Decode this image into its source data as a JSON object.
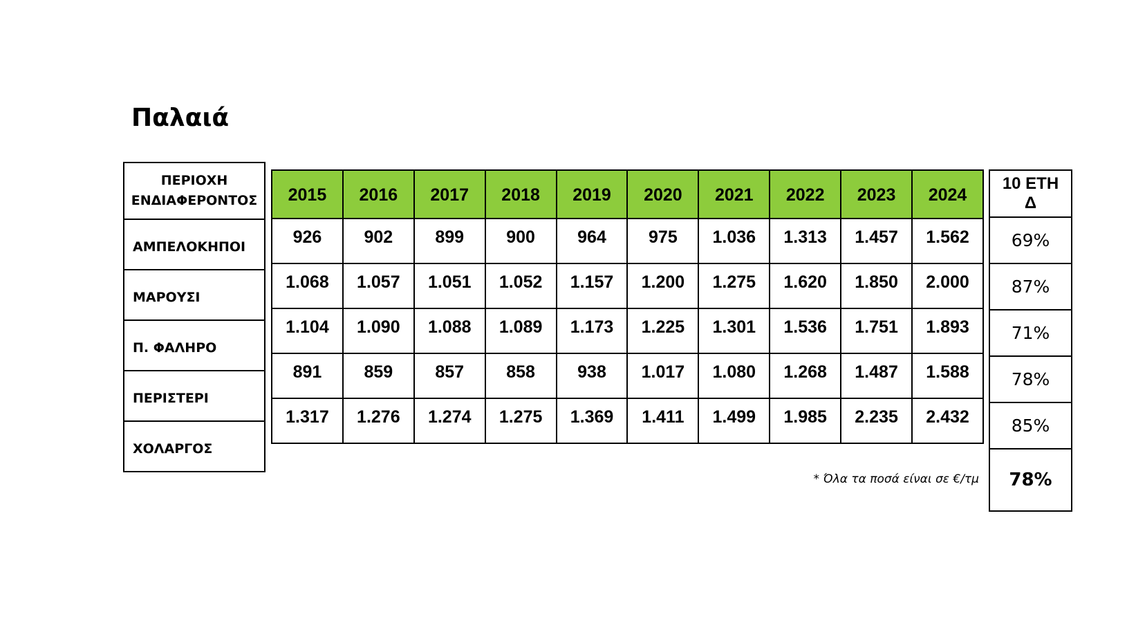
{
  "title": "Παλαιά",
  "region_header": [
    "ΠΕΡΙΟΧΗ",
    "ΕΝΔΙΑΦΕΡΟΝΤΟΣ"
  ],
  "years": [
    "2015",
    "2016",
    "2017",
    "2018",
    "2019",
    "2020",
    "2021",
    "2022",
    "2023",
    "2024"
  ],
  "change_header": [
    "10 ΕΤΗ",
    "Δ"
  ],
  "rows": [
    {
      "region": "ΑΜΠΕΛΟΚΗΠΟΙ",
      "values": [
        "926",
        "902",
        "899",
        "900",
        "964",
        "975",
        "1.036",
        "1.313",
        "1.457",
        "1.562"
      ],
      "change": "69%"
    },
    {
      "region": "ΜΑΡΟΥΣΙ",
      "values": [
        "1.068",
        "1.057",
        "1.051",
        "1.052",
        "1.157",
        "1.200",
        "1.275",
        "1.620",
        "1.850",
        "2.000"
      ],
      "change": "87%"
    },
    {
      "region": "Π. ΦΑΛΗΡΟ",
      "values": [
        "1.104",
        "1.090",
        "1.088",
        "1.089",
        "1.173",
        "1.225",
        "1.301",
        "1.536",
        "1.751",
        "1.893"
      ],
      "change": "71%"
    },
    {
      "region": "ΠΕΡΙΣΤΕΡΙ",
      "values": [
        "891",
        "859",
        "857",
        "858",
        "938",
        "1.017",
        "1.080",
        "1.268",
        "1.487",
        "1.588"
      ],
      "change": "78%"
    },
    {
      "region": "ΧΟΛΑΡΓΟΣ",
      "values": [
        "1.317",
        "1.276",
        "1.274",
        "1.275",
        "1.369",
        "1.411",
        "1.499",
        "1.985",
        "2.235",
        "2.432"
      ],
      "change": "85%"
    }
  ],
  "average_change": "78%",
  "footnote": "* Όλα τα ποσά είναι σε €/τμ",
  "colors": {
    "header_green": "#8dcc3c"
  }
}
